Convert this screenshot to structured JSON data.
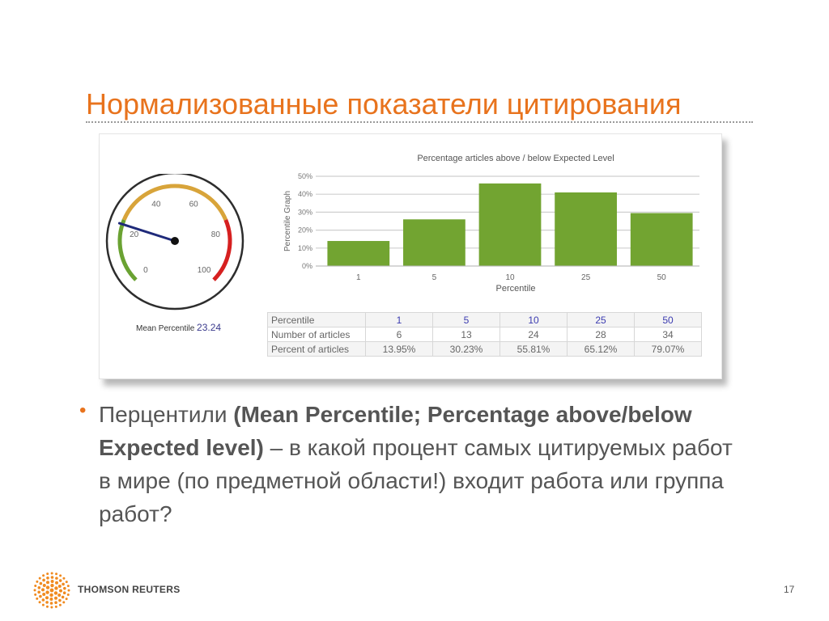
{
  "slide": {
    "title": "Нормализованные показатели цитирования",
    "page_number": "17",
    "logo_text": "THOMSON REUTERS"
  },
  "bullet": {
    "part1": "Перцентили ",
    "bold": "(Mean Percentile; Percentage above/below Expected level)",
    "part2": " – в какой процент самых цитируемых работ в мире (по предметной области!) входит работа или группа работ?"
  },
  "gauge": {
    "label": "Mean Percentile",
    "value_text": "23.24",
    "value": 23.24,
    "min": 0,
    "max": 100,
    "ticks": [
      "0",
      "20",
      "40",
      "60",
      "80",
      "100"
    ],
    "zones": [
      {
        "from": 0,
        "to": 25,
        "color": "#6aa232"
      },
      {
        "from": 25,
        "to": 75,
        "color": "#d8a43a"
      },
      {
        "from": 75,
        "to": 100,
        "color": "#d62020"
      }
    ],
    "needle_color": "#1f2a7a"
  },
  "chart_data": {
    "type": "bar",
    "title": "Percentage articles above / below Expected Level",
    "xlabel": "Percentile",
    "ylabel": "Percentile Graph",
    "categories": [
      "1",
      "5",
      "10",
      "25",
      "50"
    ],
    "values": [
      13.95,
      26,
      46,
      41,
      29.5
    ],
    "ylim": [
      0,
      50
    ],
    "yticks": [
      "0%",
      "10%",
      "20%",
      "30%",
      "40%",
      "50%"
    ],
    "bar_color": "#72a431",
    "grid": true
  },
  "table": {
    "rows": [
      {
        "label": "Percentile",
        "cells": [
          "1",
          "5",
          "10",
          "25",
          "50"
        ]
      },
      {
        "label": "Number of articles",
        "cells": [
          "6",
          "13",
          "24",
          "28",
          "34"
        ]
      },
      {
        "label": "Percent of articles",
        "cells": [
          "13.95%",
          "30.23%",
          "55.81%",
          "65.12%",
          "79.07%"
        ]
      }
    ]
  },
  "colors": {
    "accent": "#e8731d",
    "body_text": "#555555"
  }
}
